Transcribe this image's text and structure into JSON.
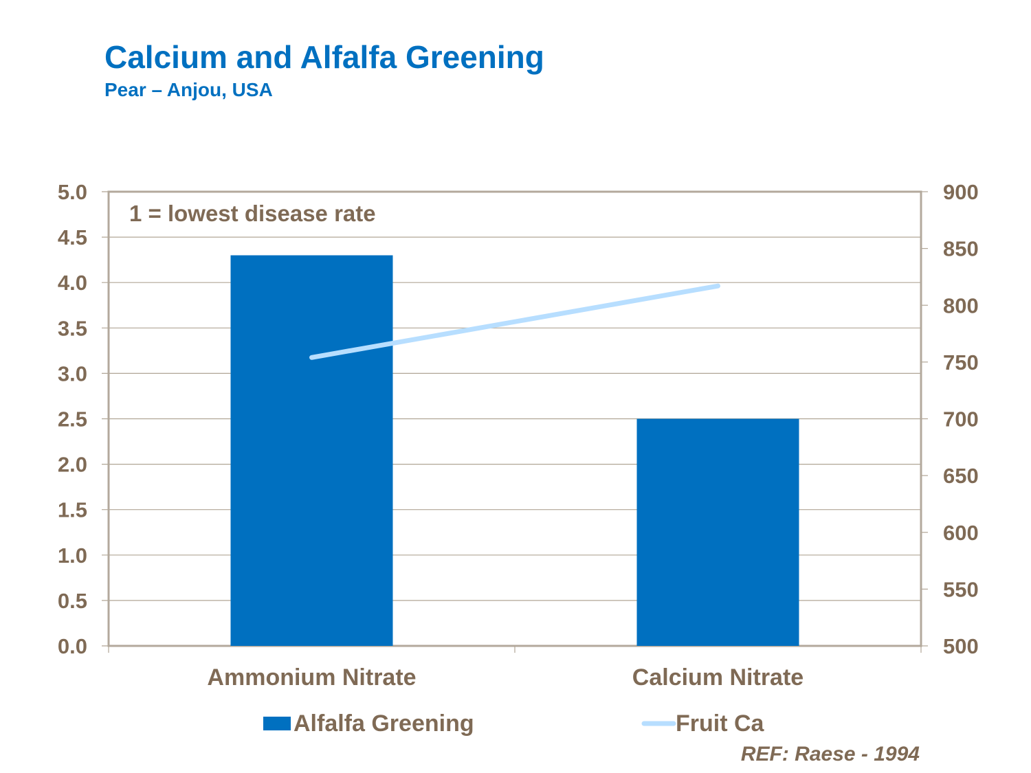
{
  "title": "Calcium and Alfalfa Greening",
  "subtitle": "Pear – Anjou, USA",
  "reference": "REF: Raese - 1994",
  "chart_data": {
    "type": "bar+line",
    "title": "Calcium and Alfalfa Greening",
    "subtitle": "Pear – Anjou, USA",
    "categories": [
      "Ammonium Nitrate",
      "Calcium Nitrate"
    ],
    "series": [
      {
        "name": "Alfalfa Greening",
        "type": "bar",
        "axis": "left",
        "values": [
          4.3,
          2.5
        ],
        "color": "#0070c0"
      },
      {
        "name": "Fruit Ca",
        "type": "line",
        "axis": "right",
        "values": [
          754,
          817
        ],
        "color": "#b7deff"
      }
    ],
    "y_left": {
      "range": [
        0,
        5
      ],
      "ticks": [
        "0.0",
        "0.5",
        "1.0",
        "1.5",
        "2.0",
        "2.5",
        "3.0",
        "3.5",
        "4.0",
        "4.5",
        "5.0"
      ]
    },
    "y_right": {
      "range": [
        500,
        900
      ],
      "ticks": [
        "500",
        "550",
        "600",
        "650",
        "700",
        "750",
        "800",
        "850",
        "900"
      ]
    },
    "annotation": "1 = lowest disease rate",
    "grid": true,
    "legend_placement": "bottom",
    "text_color": "#7f6a55"
  }
}
